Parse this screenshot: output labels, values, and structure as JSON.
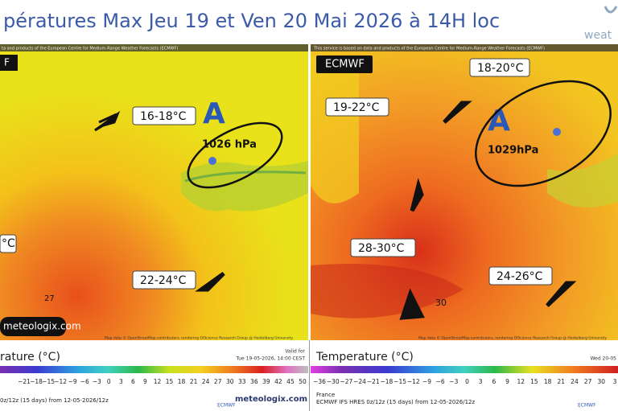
{
  "title": "pératures Max Jeu 19 et Ven 20 Mai 2026 à 14H loc",
  "logo": "weat",
  "left_map": {
    "credit_top": "ta and products of the European Centre for Medium-Range Weather Forecasts (ECMWF)",
    "source": "F",
    "labels": [
      "16-18°C",
      "°C",
      "22-24°C"
    ],
    "high": "A",
    "pressure": "1026 hPa",
    "max_value": "27",
    "watermark": "meteologix.com",
    "credit_bottom": "Map data © OpenStreetMap contributors, rendering GIScience Research Group @ Heidelberg University"
  },
  "right_map": {
    "credit_top": "This service is based on data and products of the European Centre for Medium-Range Weather Forecasts (ECMWF)",
    "source": "ECMWF",
    "labels": [
      "18-20°C",
      "19-22°C",
      "28-30°C",
      "24-26°C"
    ],
    "high": "A",
    "pressure": "1029hPa",
    "max_value": "30",
    "credit_bottom": "Map data © OpenStreetMap contributors, rendering GIScience Research Group @ Heidelberg University"
  },
  "left_legend": {
    "title": "rature (°C)",
    "valid": "Valid for",
    "valid_time": "Tue 19-05-2026, 14:00 CEST",
    "ticks": [
      "−21",
      "−18",
      "−15",
      "−12",
      "−9",
      "−6",
      "−3",
      "0",
      "3",
      "6",
      "9",
      "12",
      "15",
      "18",
      "21",
      "24",
      "27",
      "30",
      "33",
      "36",
      "39",
      "42",
      "45",
      "50"
    ],
    "run": "0z/12z (15 days) from 12-05-2026/12z",
    "brand": "ECMWF",
    "site": "meteologix.com"
  },
  "right_legend": {
    "title": "Temperature (°C)",
    "valid_time": "Wed 20-05",
    "ticks": [
      "−36",
      "−30",
      "−27",
      "−24",
      "−21",
      "−18",
      "−15",
      "−12",
      "−9",
      "−6",
      "−3",
      "0",
      "3",
      "6",
      "9",
      "12",
      "15",
      "18",
      "21",
      "24",
      "27",
      "30",
      "3"
    ],
    "region": "France",
    "run": "ECMWF IFS HRES 0z/12z (15 days) from 12-05-2026/12z",
    "brand": "ECMWF"
  }
}
